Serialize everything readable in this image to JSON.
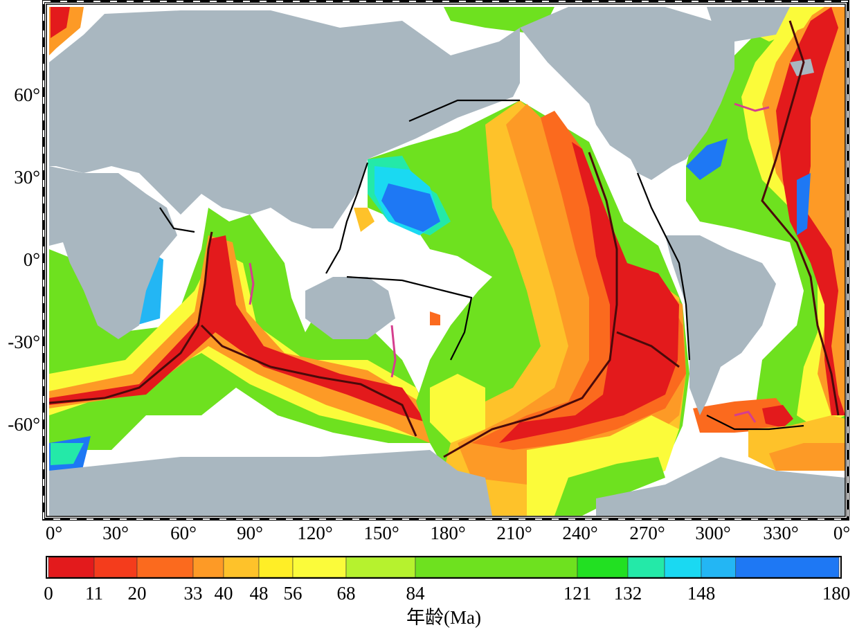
{
  "map": {
    "land_color": "#a9b7c0",
    "ocean_blank_color": "#ffffff",
    "ridge_color": "#4a0a0a",
    "trench_color": "#000000",
    "lat_labels": [
      "60°",
      "30°",
      "0°",
      "-30°",
      "-60°"
    ],
    "lon_labels": [
      "0°",
      "30°",
      "60°",
      "90°",
      "120°",
      "150°",
      "180°",
      "210°",
      "240°",
      "270°",
      "300°",
      "330°",
      "0°"
    ]
  },
  "colorbar": {
    "title": "年龄(Ma)",
    "ticks": [
      "0",
      "11",
      "20",
      "33",
      "40",
      "48",
      "56",
      "68",
      "84",
      "121",
      "132",
      "148",
      "180"
    ],
    "bins": [
      {
        "from": 0,
        "to": 11,
        "color": "#e31a1c"
      },
      {
        "from": 11,
        "to": 20,
        "color": "#f43c1c"
      },
      {
        "from": 20,
        "to": 33,
        "color": "#fb6a1e"
      },
      {
        "from": 33,
        "to": 40,
        "color": "#fd9a26"
      },
      {
        "from": 40,
        "to": 48,
        "color": "#fec22a"
      },
      {
        "from": 48,
        "to": 56,
        "color": "#ffee26"
      },
      {
        "from": 56,
        "to": 68,
        "color": "#fbfb3a"
      },
      {
        "from": 68,
        "to": 84,
        "color": "#b6f22e"
      },
      {
        "from": 84,
        "to": 121,
        "color": "#6ee11f"
      },
      {
        "from": 121,
        "to": 132,
        "color": "#22e022"
      },
      {
        "from": 132,
        "to": 140,
        "color": "#24e9a8"
      },
      {
        "from": 140,
        "to": 148,
        "color": "#1ad9f2"
      },
      {
        "from": 148,
        "to": 156,
        "color": "#23b6f4"
      },
      {
        "from": 156,
        "to": 180,
        "color": "#1e78f4"
      }
    ]
  }
}
